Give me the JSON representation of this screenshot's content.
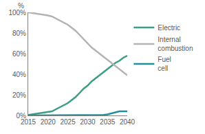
{
  "chart_data": {
    "type": "line",
    "ylabel": "%",
    "x": [
      2015,
      2016,
      2017,
      2018,
      2019,
      2020,
      2021,
      2022,
      2023,
      2024,
      2025,
      2026,
      2027,
      2028,
      2029,
      2030,
      2031,
      2032,
      2033,
      2034,
      2035,
      2036,
      2037,
      2038,
      2039,
      2040
    ],
    "series": [
      {
        "name": "Electric",
        "color": "#3a9e84",
        "values": [
          0.5,
          1,
          1.5,
          2,
          2.5,
          3,
          4,
          6,
          8,
          10,
          12,
          15,
          18,
          22,
          26,
          29,
          33,
          36,
          39,
          42,
          45,
          48,
          51,
          53,
          56,
          58
        ]
      },
      {
        "name": "Internal combustion",
        "color": "#b3b3b3",
        "values": [
          100,
          99.5,
          99,
          98,
          97.5,
          97,
          96,
          94,
          92,
          90,
          88,
          85,
          82,
          78,
          74,
          70,
          66,
          63,
          60,
          57,
          54,
          51,
          48,
          45,
          42,
          39
        ]
      },
      {
        "name": "Fuel cell",
        "color": "#1f8f9c",
        "values": [
          0,
          0,
          0,
          0,
          0,
          0,
          0,
          0,
          0,
          0,
          0,
          0,
          0,
          0,
          0,
          0,
          0,
          0,
          0,
          0.5,
          1,
          2,
          3,
          4,
          4,
          4
        ]
      }
    ],
    "xlim": [
      2015,
      2040
    ],
    "xticks": [
      2015,
      2020,
      2025,
      2030,
      2035,
      2040
    ],
    "ylim": [
      0,
      100
    ],
    "yticks": [
      {
        "value": 0,
        "label": "0%"
      },
      {
        "value": 20,
        "label": "20%"
      },
      {
        "value": 40,
        "label": "40%"
      },
      {
        "value": 60,
        "label": "60%"
      },
      {
        "value": 80,
        "label": "80%"
      },
      {
        "value": 100,
        "label": "100%"
      }
    ],
    "grid": false,
    "legend": "right"
  }
}
